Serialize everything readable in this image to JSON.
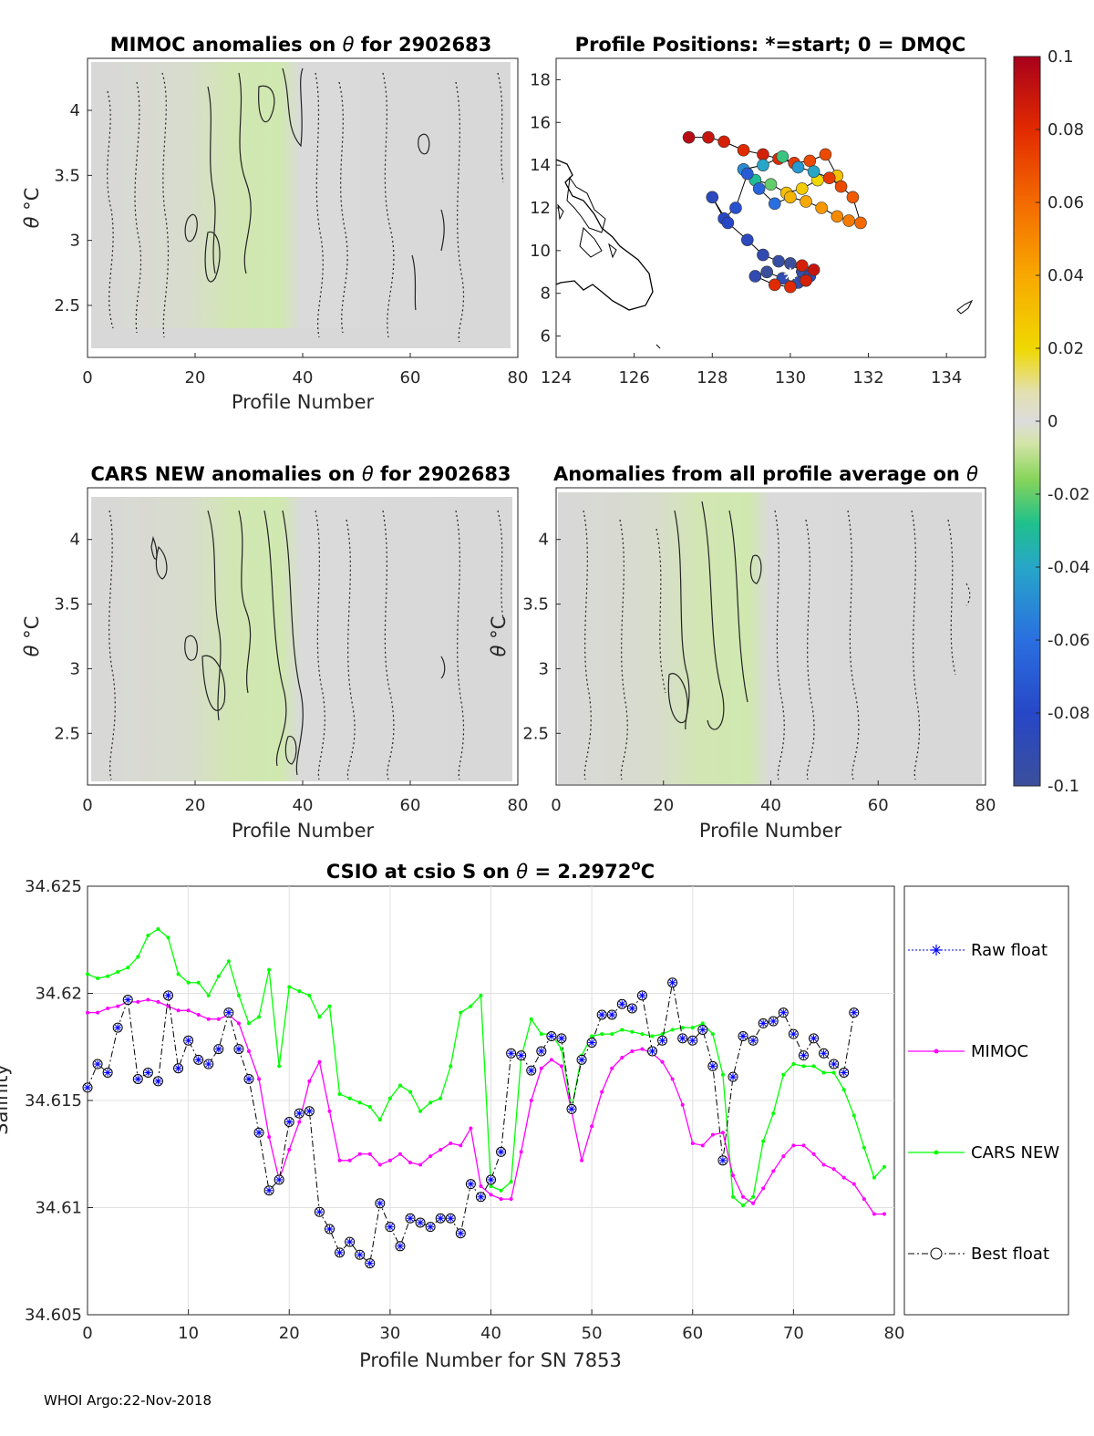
{
  "footer": "WHOI Argo:22-Nov-2018",
  "panels": {
    "mimoc": {
      "title_prefix": "MIMOC anomalies on ",
      "title_sym": "θ",
      "title_suffix": "  for 2902683",
      "xlabel": "Profile Number",
      "ylabel_sym": "θ",
      "ylabel_unit": " °C"
    },
    "positions": {
      "title": "Profile Positions: *=start; 0 = DMQC"
    },
    "cars": {
      "title_prefix": "CARS NEW anomalies on ",
      "title_sym": "θ",
      "title_suffix": " for 2902683",
      "xlabel": "Profile Number",
      "ylabel_sym": "θ",
      "ylabel_unit": " °C"
    },
    "allavg": {
      "title_prefix": "Anomalies from all profile average on ",
      "title_sym": "θ",
      "xlabel": "Profile Number",
      "ylabel_sym": "θ",
      "ylabel_unit": " °C"
    },
    "csio": {
      "title_prefix": "CSIO at csio S on ",
      "title_sym": "θ",
      "title_mid": " = 2.2972",
      "title_sup": "o",
      "title_end": "C",
      "xlabel": "Profile Number for SN 7853",
      "ylabel": "Salinity"
    }
  },
  "colors": {
    "mimoc": "#ff00ff",
    "cars": "#00ff00",
    "raw": "#0000ff",
    "best": "#000000",
    "anom_fill": "#d8d8d8",
    "green_fill": "#d4e9b4",
    "land": "#000000"
  },
  "chart_data": [
    {
      "type": "heatmap",
      "name": "mimoc",
      "title": "MIMOC anomalies on θ  for 2902683",
      "xlabel": "Profile Number",
      "ylabel": "θ °C",
      "xlim": [
        0,
        80
      ],
      "ylim": [
        2.1,
        4.4
      ],
      "xticks": [
        0,
        20,
        40,
        60,
        80
      ],
      "yticks": [
        2.5,
        3,
        3.5,
        4
      ]
    },
    {
      "type": "scatter",
      "name": "positions",
      "title": "Profile Positions: *=start; 0 = DMQC",
      "xlim": [
        124,
        135
      ],
      "ylim": [
        5,
        19
      ],
      "xticks": [
        124,
        126,
        128,
        130,
        132,
        134
      ],
      "yticks": [
        6,
        8,
        10,
        12,
        14,
        16,
        18
      ],
      "start": {
        "lon": 130.0,
        "lat": 8.9
      },
      "lon": [
        127.4,
        127.9,
        128.3,
        128.8,
        129.3,
        129.7,
        130.1,
        130.5,
        130.9,
        131.2,
        130.7,
        130.3,
        129.9,
        129.5,
        129.1,
        128.8,
        129.3,
        129.8,
        130.2,
        130.6,
        131.0,
        131.3,
        131.6,
        131.8,
        131.5,
        131.2,
        130.8,
        130.4,
        130.0,
        129.6,
        129.2,
        128.9,
        128.6,
        128.3,
        128.0,
        128.4,
        128.9,
        129.3,
        129.7,
        130.0,
        130.3,
        130.5,
        130.4,
        130.2,
        129.8,
        129.4,
        129.1,
        129.6,
        130.0,
        130.4,
        130.6,
        130.3
      ],
      "lat": [
        15.3,
        15.3,
        15.1,
        14.7,
        14.5,
        14.3,
        14.1,
        14.2,
        14.5,
        13.5,
        13.3,
        12.9,
        12.7,
        13.1,
        13.3,
        13.8,
        14.0,
        14.4,
        13.9,
        13.7,
        13.4,
        13.0,
        12.5,
        11.3,
        11.4,
        11.6,
        12.0,
        12.3,
        12.5,
        12.2,
        12.9,
        13.6,
        12.0,
        11.5,
        12.5,
        11.3,
        10.5,
        9.8,
        9.5,
        9.4,
        9.0,
        8.8,
        8.6,
        8.5,
        8.7,
        9.0,
        8.8,
        8.4,
        8.3,
        8.6,
        9.1,
        9.3
      ],
      "anomaly": [
        0.095,
        0.09,
        0.085,
        0.08,
        0.085,
        0.08,
        0.075,
        0.07,
        0.07,
        0.03,
        0.02,
        0.025,
        0.03,
        -0.02,
        -0.03,
        -0.05,
        -0.04,
        -0.025,
        -0.045,
        -0.04,
        0.075,
        0.07,
        0.065,
        0.06,
        0.055,
        0.05,
        0.045,
        0.04,
        0.035,
        -0.06,
        -0.065,
        -0.07,
        -0.075,
        -0.08,
        -0.085,
        -0.08,
        -0.085,
        -0.09,
        -0.095,
        -0.1,
        -0.095,
        -0.09,
        -0.1,
        -0.095,
        -0.09,
        -0.1,
        -0.09,
        0.08,
        0.08,
        0.085,
        0.09,
        0.085
      ],
      "colorbar": {
        "min": -0.1,
        "max": 0.1,
        "ticks": [
          "0.1",
          "0.08",
          "0.06",
          "0.04",
          "0.02",
          "0",
          "-0.02",
          "-0.04",
          "-0.06",
          "-0.08",
          "-0.1"
        ]
      }
    },
    {
      "type": "heatmap",
      "name": "cars",
      "title": "CARS NEW anomalies on θ for 2902683",
      "xlabel": "Profile Number",
      "ylabel": "θ °C",
      "xlim": [
        0,
        80
      ],
      "ylim": [
        2.1,
        4.4
      ],
      "xticks": [
        0,
        20,
        40,
        60,
        80
      ],
      "yticks": [
        2.5,
        3,
        3.5,
        4
      ]
    },
    {
      "type": "heatmap",
      "name": "allavg",
      "title": "Anomalies from all profile average on θ",
      "xlabel": "Profile Number",
      "ylabel": "θ °C",
      "xlim": [
        0,
        80
      ],
      "ylim": [
        2.1,
        4.4
      ],
      "xticks": [
        0,
        20,
        40,
        60,
        80
      ],
      "yticks": [
        2.5,
        3,
        3.5,
        4
      ]
    },
    {
      "type": "line",
      "name": "csio",
      "title": "CSIO at csio S on θ = 2.2972°C",
      "xlabel": "Profile Number for SN 7853",
      "ylabel": "Salinity",
      "xlim": [
        0,
        80
      ],
      "ylim": [
        34.605,
        34.625
      ],
      "xticks": [
        0,
        10,
        20,
        30,
        40,
        50,
        60,
        70,
        80
      ],
      "yticks": [
        34.605,
        34.61,
        34.615,
        34.62,
        34.625
      ],
      "ytick_labels": [
        "34.605",
        "34.61",
        "34.615",
        "34.62",
        "34.625"
      ],
      "grid": true,
      "legend": [
        "Raw float",
        "MIMOC",
        "CARS NEW",
        "Best float"
      ],
      "series": [
        {
          "name": "MIMOC",
          "values": [
            34.6191,
            34.6191,
            34.6193,
            34.6194,
            34.6196,
            34.6196,
            34.6197,
            34.6196,
            34.6194,
            34.6192,
            34.6192,
            34.619,
            34.6188,
            34.6188,
            34.619,
            34.6186,
            34.6173,
            34.616,
            34.6133,
            34.6113,
            34.6127,
            34.614,
            34.6159,
            34.6168,
            34.6145,
            34.6122,
            34.6122,
            34.6125,
            34.6125,
            34.612,
            34.6122,
            34.6125,
            34.6121,
            34.612,
            34.6124,
            34.6127,
            34.613,
            34.6129,
            34.6137,
            34.611,
            34.6106,
            34.6104,
            34.6104,
            34.6126,
            34.615,
            34.6165,
            34.6169,
            34.6166,
            34.6145,
            34.6122,
            34.6138,
            34.6154,
            34.6165,
            34.617,
            34.6173,
            34.6174,
            34.6172,
            34.6168,
            34.616,
            34.6148,
            34.613,
            34.6129,
            34.6134,
            34.6135,
            34.6115,
            34.6105,
            34.6102,
            34.6109,
            34.6117,
            34.6124,
            34.6129,
            34.6129,
            34.6125,
            34.612,
            34.6118,
            34.6114,
            34.6111,
            34.6104,
            34.6097,
            34.6097
          ]
        },
        {
          "name": "CARS NEW",
          "values": [
            34.6209,
            34.6207,
            34.6208,
            34.621,
            34.6212,
            34.6217,
            34.6227,
            34.623,
            34.6226,
            34.6209,
            34.6205,
            34.6205,
            34.6199,
            34.6208,
            34.6215,
            34.6199,
            34.6186,
            34.6189,
            34.6211,
            34.6166,
            34.6203,
            34.6201,
            34.6199,
            34.6189,
            34.6194,
            34.6153,
            34.6151,
            34.6149,
            34.6147,
            34.6141,
            34.6151,
            34.6157,
            34.6154,
            34.6145,
            34.6149,
            34.6151,
            34.6166,
            34.6191,
            34.6194,
            34.6199,
            34.611,
            34.6108,
            34.6112,
            34.617,
            34.6188,
            34.6181,
            34.6181,
            34.6174,
            34.6146,
            34.6171,
            34.618,
            34.6181,
            34.6181,
            34.6183,
            34.6182,
            34.6181,
            34.618,
            34.6181,
            34.6183,
            34.6184,
            34.6184,
            34.6186,
            34.6181,
            34.6162,
            34.6105,
            34.6101,
            34.6105,
            34.6131,
            34.6144,
            34.6162,
            34.6167,
            34.6166,
            34.6166,
            34.6163,
            34.6163,
            34.6155,
            34.6143,
            34.6128,
            34.6114,
            34.6119
          ]
        },
        {
          "name": "Best float",
          "values": [
            34.6156,
            34.6167,
            34.6163,
            34.6184,
            34.6197,
            34.616,
            34.6163,
            34.6159,
            34.6199,
            34.6165,
            34.6178,
            34.6169,
            34.6167,
            34.6174,
            34.6191,
            34.6174,
            34.616,
            34.6135,
            34.6108,
            34.6113,
            34.614,
            34.6144,
            34.6145,
            34.6098,
            34.609,
            34.6079,
            34.6084,
            34.6078,
            34.6074,
            34.6102,
            34.6091,
            34.6082,
            34.6095,
            34.6093,
            34.6091,
            34.6095,
            34.6095,
            34.6088,
            34.6111,
            34.6105,
            34.6113,
            34.6126,
            34.6172,
            34.6171,
            34.6164,
            34.6173,
            34.618,
            34.6179,
            34.6146,
            34.6169,
            34.6177,
            34.619,
            34.619,
            34.6195,
            34.6193,
            34.6199,
            34.6173,
            34.6178,
            34.6205,
            34.6179,
            34.6178,
            34.6183,
            34.6166,
            34.6122,
            34.6161,
            34.618,
            34.6178,
            34.6186,
            34.6187,
            34.6191,
            34.6181,
            34.6171,
            34.6179,
            34.6172,
            34.6167,
            34.6163,
            34.6191
          ]
        }
      ]
    }
  ]
}
